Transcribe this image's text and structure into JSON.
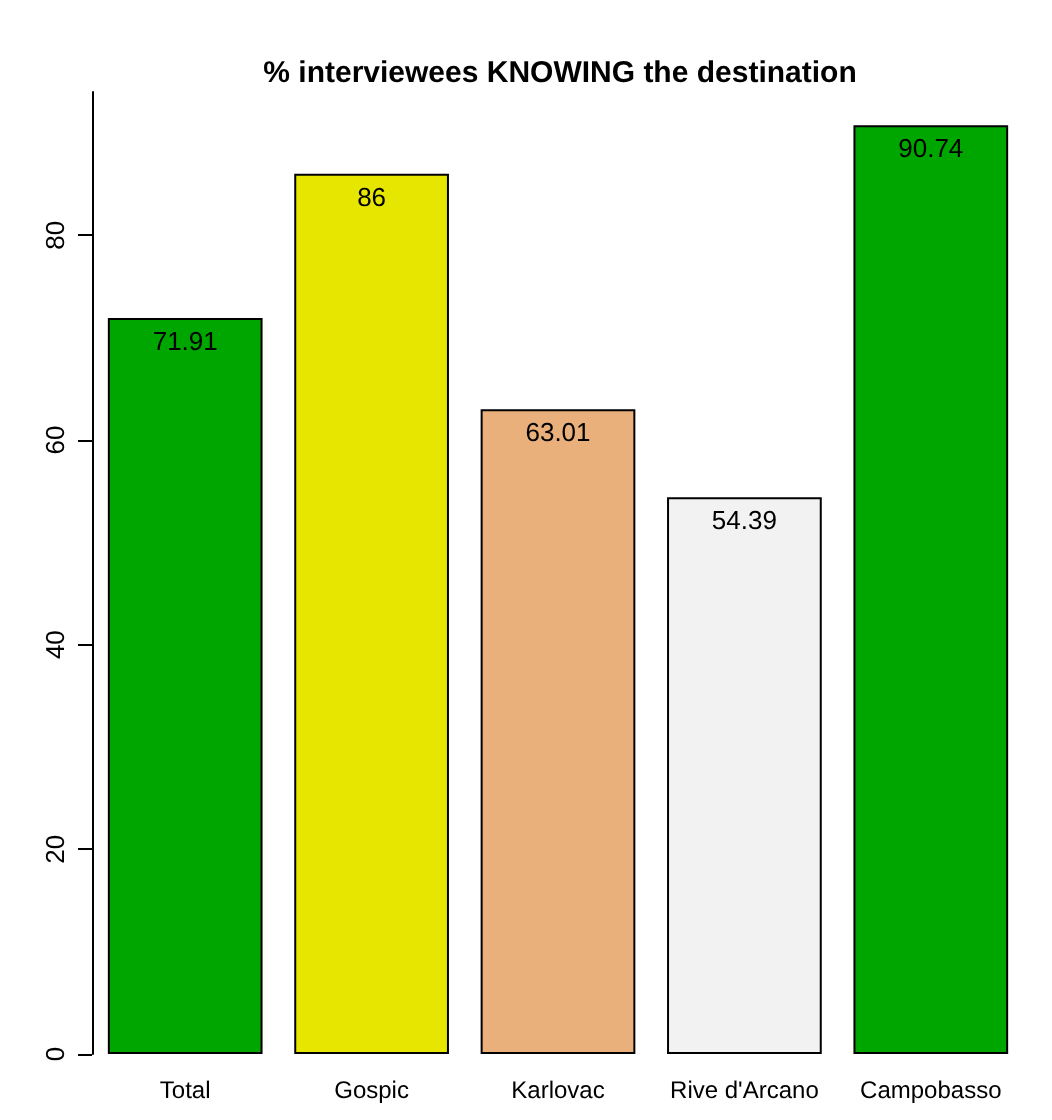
{
  "chart_data": {
    "type": "bar",
    "title": "% interviewees KNOWING the destination",
    "categories": [
      "Total",
      "Gospic",
      "Karlovac",
      "Rive d'Arcano",
      "Campobasso"
    ],
    "values": [
      71.91,
      86,
      63.01,
      54.39,
      90.74
    ],
    "colors": [
      "#00a600",
      "#e6e600",
      "#e9b07c",
      "#f2f2f2",
      "#00a600"
    ],
    "ylim": [
      0,
      94
    ],
    "yticks": [
      0,
      20,
      40,
      60,
      80
    ],
    "grid": false,
    "data_labels": true
  }
}
